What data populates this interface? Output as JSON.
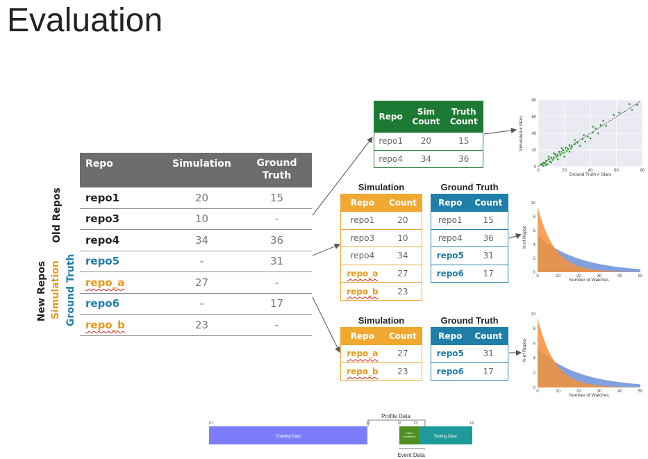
{
  "title": "Evaluation",
  "side_labels": {
    "old": "Old Repos",
    "new": "New Repos",
    "simulation": "Simulation",
    "ground_truth": "Ground Truth"
  },
  "main_table": {
    "headers": [
      "Repo",
      "Simulation",
      "Ground\nTruth"
    ],
    "rows": [
      {
        "repo": "repo1",
        "sim": "20",
        "gt": "15"
      },
      {
        "repo": "repo3",
        "sim": "10",
        "gt": "-"
      },
      {
        "repo": "repo4",
        "sim": "34",
        "gt": "36"
      },
      {
        "repo": "repo5",
        "sim": "-",
        "gt": "31"
      },
      {
        "repo": "repo_a",
        "sim": "27",
        "gt": "-"
      },
      {
        "repo": "repo6",
        "sim": "-",
        "gt": "17"
      },
      {
        "repo": "repo_b",
        "sim": "23",
        "gt": "-"
      }
    ]
  },
  "top_table": {
    "headers": [
      "Repo",
      "Sim\nCount",
      "Truth\nCount"
    ],
    "rows": [
      [
        "repo1",
        "20",
        "15"
      ],
      [
        "repo4",
        "34",
        "36"
      ]
    ]
  },
  "mid": {
    "sim_title": "Simulation",
    "gt_title": "Ground Truth",
    "sim_headers": [
      "Repo",
      "Count"
    ],
    "gt_headers": [
      "Repo",
      "Count"
    ],
    "sim_rows": [
      [
        "repo1",
        "20"
      ],
      [
        "repo3",
        "10"
      ],
      [
        "repo4",
        "34"
      ],
      [
        "repo_a",
        "27"
      ],
      [
        "repo_b",
        "23"
      ]
    ],
    "gt_rows": [
      [
        "repo1",
        "15"
      ],
      [
        "repo4",
        "36"
      ],
      [
        "repo5",
        "31"
      ],
      [
        "repo6",
        "17"
      ]
    ]
  },
  "bottom": {
    "sim_title": "Simulation",
    "gt_title": "Ground Truth",
    "sim_headers": [
      "Repo",
      "Count"
    ],
    "gt_headers": [
      "Repo",
      "Count"
    ],
    "sim_rows": [
      [
        "repo_a",
        "27"
      ],
      [
        "repo_b",
        "23"
      ]
    ],
    "gt_rows": [
      [
        "repo5",
        "31"
      ],
      [
        "repo6",
        "17"
      ]
    ]
  },
  "chart_data": [
    {
      "type": "scatter",
      "xlabel": "Ground Truth # Stars",
      "ylabel": "Simulated # Stars",
      "xlim": [
        0,
        80
      ],
      "ylim": [
        0,
        80
      ],
      "xticks": [
        "0",
        "20",
        "40",
        "60",
        "80"
      ],
      "yticks": [
        "0",
        "20",
        "40",
        "60",
        "80"
      ],
      "points": [
        [
          2,
          3
        ],
        [
          3,
          2
        ],
        [
          4,
          5
        ],
        [
          5,
          4
        ],
        [
          6,
          7
        ],
        [
          7,
          3
        ],
        [
          8,
          9
        ],
        [
          9,
          6
        ],
        [
          10,
          11
        ],
        [
          11,
          8
        ],
        [
          12,
          10
        ],
        [
          13,
          15
        ],
        [
          14,
          12
        ],
        [
          15,
          13
        ],
        [
          16,
          18
        ],
        [
          17,
          14
        ],
        [
          18,
          16
        ],
        [
          19,
          20
        ],
        [
          20,
          17
        ],
        [
          21,
          23
        ],
        [
          22,
          19
        ],
        [
          23,
          21
        ],
        [
          24,
          26
        ],
        [
          25,
          22
        ],
        [
          26,
          24
        ],
        [
          28,
          27
        ],
        [
          30,
          29
        ],
        [
          32,
          25
        ],
        [
          34,
          33
        ],
        [
          36,
          30
        ],
        [
          38,
          36
        ],
        [
          40,
          34
        ],
        [
          42,
          41
        ],
        [
          44,
          46
        ],
        [
          46,
          40
        ],
        [
          48,
          50
        ],
        [
          52,
          49
        ],
        [
          58,
          62
        ],
        [
          62,
          65
        ],
        [
          70,
          75
        ],
        [
          72,
          68
        ],
        [
          76,
          74
        ],
        [
          4,
          1
        ],
        [
          6,
          2
        ],
        [
          8,
          12
        ],
        [
          10,
          5
        ],
        [
          12,
          16
        ],
        [
          15,
          9
        ],
        [
          18,
          22
        ],
        [
          20,
          12
        ],
        [
          24,
          18
        ],
        [
          28,
          32
        ],
        [
          35,
          38
        ],
        [
          42,
          48
        ],
        [
          50,
          55
        ]
      ],
      "trend": [
        [
          0,
          0
        ],
        [
          78,
          78
        ]
      ]
    },
    {
      "type": "area",
      "xlabel": "Number of Watches",
      "ylabel": "% of Repos",
      "xlim": [
        0,
        50
      ],
      "ylim": [
        0,
        10
      ],
      "xticks": [
        "0",
        "10",
        "20",
        "30",
        "40",
        "50"
      ],
      "yticks": [
        "0",
        "2",
        "4",
        "6",
        "8",
        "10"
      ],
      "series": [
        {
          "name": "simulation",
          "color": "#f5903a",
          "amp": 9.5,
          "decay": 0.12
        },
        {
          "name": "ground truth",
          "color": "#6b8fd8",
          "amp": 5.3,
          "decay": 0.05
        }
      ]
    },
    {
      "type": "area",
      "xlabel": "Number of Watches",
      "ylabel": "% of Repos",
      "xlim": [
        0,
        50
      ],
      "ylim": [
        0,
        10
      ],
      "xticks": [
        "0",
        "10",
        "20",
        "30",
        "40",
        "50"
      ],
      "yticks": [
        "0",
        "2",
        "4",
        "6",
        "8",
        "10"
      ],
      "series": [
        {
          "name": "simulation",
          "color": "#f5903a",
          "amp": 9.5,
          "decay": 0.12
        },
        {
          "name": "ground truth",
          "color": "#6b8fd8",
          "amp": 5.3,
          "decay": 0.05
        }
      ]
    }
  ],
  "timeline": {
    "profile_label": "Profile Data",
    "event_label": "Event Data",
    "t0": "t0",
    "t1": "t1",
    "t2": "t2",
    "t3": "t3",
    "t4": "t4",
    "training": "Training Data",
    "initial": "Initial\nConditions",
    "testing": "Testing Data"
  }
}
